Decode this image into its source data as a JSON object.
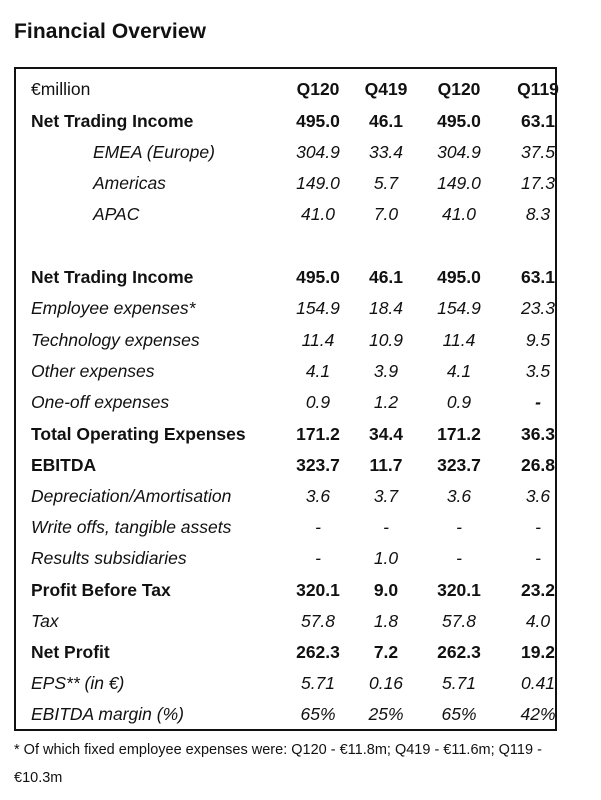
{
  "title": "Financial Overview",
  "header": {
    "label": "€million",
    "cols": [
      "Q120",
      "Q419",
      "Q120",
      "Q119"
    ]
  },
  "rows": [
    {
      "label": "Net Trading Income",
      "values": [
        "495.0",
        "46.1",
        "495.0",
        "63.1"
      ],
      "style": "bold"
    },
    {
      "label": "EMEA (Europe)",
      "values": [
        "304.9",
        "33.4",
        "304.9",
        "37.5"
      ],
      "style": "italic-indent"
    },
    {
      "label": "Americas",
      "values": [
        "149.0",
        "5.7",
        "149.0",
        "17.3"
      ],
      "style": "italic-indent"
    },
    {
      "label": "APAC",
      "values": [
        "41.0",
        "7.0",
        "41.0",
        "8.3"
      ],
      "style": "italic-indent"
    },
    {
      "label": "Net Trading Income",
      "values": [
        "495.0",
        "46.1",
        "495.0",
        "63.1"
      ],
      "style": "bold"
    },
    {
      "label": "Employee expenses*",
      "values": [
        "154.9",
        "18.4",
        "154.9",
        "23.3"
      ],
      "style": "italic"
    },
    {
      "label": "Technology expenses",
      "values": [
        "11.4",
        "10.9",
        "11.4",
        "9.5"
      ],
      "style": "italic"
    },
    {
      "label": "Other expenses",
      "values": [
        "4.1",
        "3.9",
        "4.1",
        "3.5"
      ],
      "style": "italic"
    },
    {
      "label": "One-off expenses",
      "values": [
        "0.9",
        "1.2",
        "0.9",
        "-"
      ],
      "style": "italic"
    },
    {
      "label": "Total Operating Expenses",
      "values": [
        "171.2",
        "34.4",
        "171.2",
        "36.3"
      ],
      "style": "bold"
    },
    {
      "label": "EBITDA",
      "values": [
        "323.7",
        "11.7",
        "323.7",
        "26.8"
      ],
      "style": "bold"
    },
    {
      "label": "Depreciation/Amortisation",
      "values": [
        "3.6",
        "3.7",
        "3.6",
        "3.6"
      ],
      "style": "italic"
    },
    {
      "label": "Write offs, tangible assets",
      "values": [
        "-",
        "-",
        "-",
        "-"
      ],
      "style": "italic"
    },
    {
      "label": "Results subsidiaries",
      "values": [
        "-",
        "1.0",
        "-",
        "-"
      ],
      "style": "italic"
    },
    {
      "label": "Profit Before Tax",
      "values": [
        "320.1",
        "9.0",
        "320.1",
        "23.2"
      ],
      "style": "bold"
    },
    {
      "label": "Tax",
      "values": [
        "57.8",
        "1.8",
        "57.8",
        "4.0"
      ],
      "style": "italic"
    },
    {
      "label": "Net Profit",
      "values": [
        "262.3",
        "7.2",
        "262.3",
        "19.2"
      ],
      "style": "bold"
    },
    {
      "label": "EPS** (in €)",
      "values": [
        "5.71",
        "0.16",
        "5.71",
        "0.41"
      ],
      "style": "italic"
    },
    {
      "label": "EBITDA margin (%)",
      "values": [
        "65%",
        "25%",
        "65%",
        "42%"
      ],
      "style": "italic"
    }
  ],
  "footnote": "* Of which fixed employee expenses were: Q120 - €11.8m; Q419 - €11.6m; Q119 - €10.3m"
}
